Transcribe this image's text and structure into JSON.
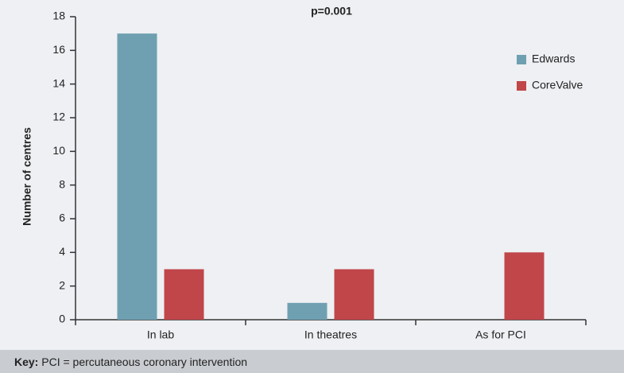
{
  "chart_data": {
    "type": "bar",
    "annotation": "p=0.001",
    "ylabel": "Number of centres",
    "categories": [
      "In lab",
      "In theatres",
      "As for PCI"
    ],
    "series": [
      {
        "name": "Edwards",
        "color": "#6fa0b2",
        "values": [
          17,
          1,
          0
        ]
      },
      {
        "name": "CoreValve",
        "color": "#c0464a",
        "values": [
          3,
          3,
          4
        ]
      }
    ],
    "ylim": [
      0,
      18
    ],
    "yticks": [
      0,
      2,
      4,
      6,
      8,
      10,
      12,
      14,
      16,
      18
    ],
    "grid": false,
    "legend": "upper right"
  },
  "footnote": {
    "label": "Key:",
    "text": "PCI = percutaneous coronary intervention"
  }
}
